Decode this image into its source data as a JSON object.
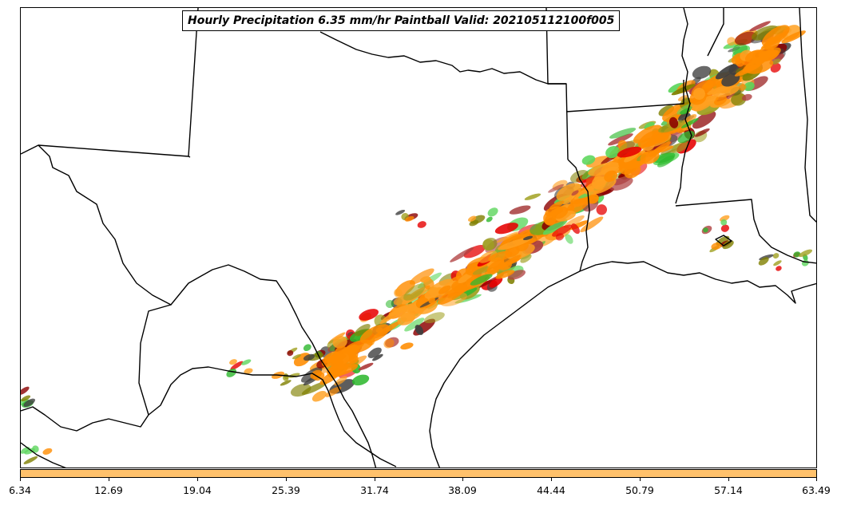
{
  "title": "Hourly Precipitation 6.35 mm/hr Paintball Valid: 202105112100f005",
  "colorbar": {
    "color": "#ffc16b",
    "ticks": [
      "6.34",
      "12.69",
      "19.04",
      "25.39",
      "31.74",
      "38.09",
      "44.44",
      "50.79",
      "57.14",
      "63.49"
    ]
  },
  "paint_colors": [
    "#ff8c00",
    "#ffa020",
    "#e60000",
    "#8b0000",
    "#2db82d",
    "#5cd65c",
    "#808000",
    "#a0a020",
    "#b04040",
    "#404040"
  ]
}
